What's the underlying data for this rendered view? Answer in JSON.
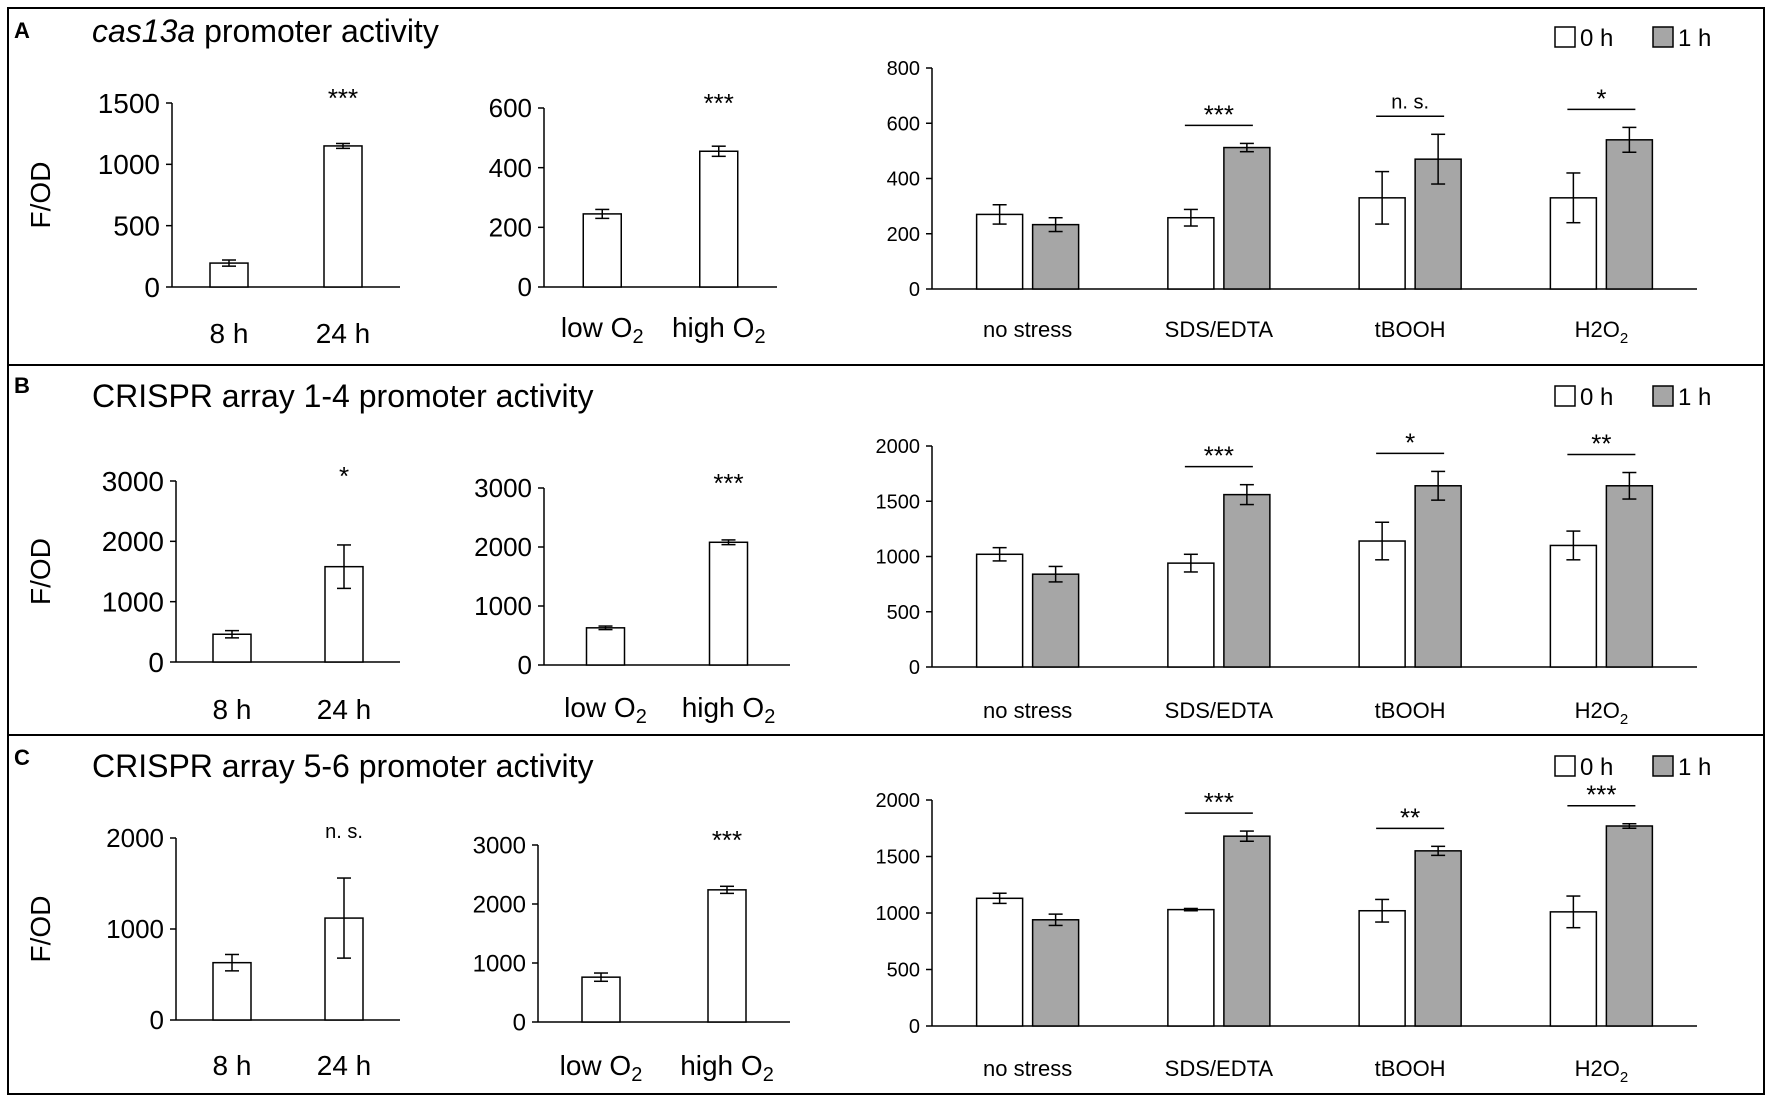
{
  "figure": {
    "panels": [
      {
        "letter": "A",
        "title_italic": "cas13a",
        "title": "promoter activity",
        "legend": [
          "0 h",
          "1 h"
        ]
      },
      {
        "letter": "B",
        "title_italic": "",
        "title": "CRISPR array 1-4 promoter activity",
        "legend": [
          "0 h",
          "1 h"
        ]
      },
      {
        "letter": "C",
        "title_italic": "",
        "title": "CRISPR array 5-6 promoter activity",
        "legend": [
          "0 h",
          "1 h"
        ]
      }
    ],
    "colors": {
      "open_bar": "#ffffff",
      "filled_bar": "#a6a6a6",
      "stroke": "#000000"
    },
    "chart_data": [
      {
        "panel": "A",
        "type": "bar",
        "ylabel": "F/OD",
        "categories": [
          "8 h",
          "24 h"
        ],
        "values": [
          195,
          1150
        ],
        "errors": [
          25,
          20
        ],
        "ylim": [
          0,
          1500
        ],
        "yticks": [
          0,
          500,
          1000,
          1500
        ],
        "annotations": [
          {
            "category": 1,
            "text": "***"
          }
        ]
      },
      {
        "panel": "A",
        "type": "bar",
        "ylabel": "",
        "categories": [
          "low O2",
          "high O2"
        ],
        "values": [
          245,
          455
        ],
        "errors": [
          15,
          17
        ],
        "ylim": [
          0,
          600
        ],
        "yticks": [
          0,
          200,
          400,
          600
        ],
        "annotations": [
          {
            "category": 1,
            "text": "***"
          }
        ]
      },
      {
        "panel": "A",
        "type": "bar",
        "ylabel": "",
        "categories": [
          "no stress",
          "SDS/EDTA",
          "tBOOH",
          "H2O2"
        ],
        "series": [
          {
            "name": "0 h",
            "values": [
              270,
              258,
              330,
              330
            ],
            "errors": [
              35,
              30,
              95,
              90
            ]
          },
          {
            "name": "1 h",
            "values": [
              233,
              512,
              470,
              540
            ],
            "errors": [
              25,
              15,
              90,
              45
            ]
          }
        ],
        "ylim": [
          0,
          800
        ],
        "yticks": [
          0,
          200,
          400,
          600,
          800
        ],
        "annotations": [
          {
            "category": 1,
            "text": "***"
          },
          {
            "category": 2,
            "text": "n. s."
          },
          {
            "category": 3,
            "text": "*"
          }
        ]
      },
      {
        "panel": "B",
        "type": "bar",
        "ylabel": "F/OD",
        "categories": [
          "8 h",
          "24 h"
        ],
        "values": [
          460,
          1580
        ],
        "errors": [
          60,
          360
        ],
        "ylim": [
          0,
          3000
        ],
        "yticks": [
          0,
          1000,
          2000,
          3000
        ],
        "annotations": [
          {
            "category": 1,
            "text": "*"
          }
        ]
      },
      {
        "panel": "B",
        "type": "bar",
        "ylabel": "",
        "categories": [
          "low O2",
          "high O2"
        ],
        "values": [
          630,
          2080
        ],
        "errors": [
          30,
          40
        ],
        "ylim": [
          0,
          3000
        ],
        "yticks": [
          0,
          1000,
          2000,
          3000
        ],
        "annotations": [
          {
            "category": 1,
            "text": "***"
          }
        ]
      },
      {
        "panel": "B",
        "type": "bar",
        "ylabel": "",
        "categories": [
          "no stress",
          "SDS/EDTA",
          "tBOOH",
          "H2O2"
        ],
        "series": [
          {
            "name": "0 h",
            "values": [
              1020,
              940,
              1140,
              1100
            ],
            "errors": [
              60,
              80,
              170,
              130
            ]
          },
          {
            "name": "1 h",
            "values": [
              840,
              1560,
              1640,
              1640
            ],
            "errors": [
              70,
              90,
              130,
              120
            ]
          }
        ],
        "ylim": [
          0,
          2000
        ],
        "yticks": [
          0,
          500,
          1000,
          1500,
          2000
        ],
        "annotations": [
          {
            "category": 1,
            "text": "***"
          },
          {
            "category": 2,
            "text": "*"
          },
          {
            "category": 3,
            "text": "**"
          }
        ]
      },
      {
        "panel": "C",
        "type": "bar",
        "ylabel": "F/OD",
        "categories": [
          "8 h",
          "24 h"
        ],
        "values": [
          630,
          1120
        ],
        "errors": [
          90,
          440
        ],
        "ylim": [
          0,
          2000
        ],
        "yticks": [
          0,
          1000,
          2000
        ],
        "annotations": [
          {
            "category": 1,
            "text": "n. s."
          }
        ]
      },
      {
        "panel": "C",
        "type": "bar",
        "ylabel": "",
        "categories": [
          "low O2",
          "high O2"
        ],
        "values": [
          760,
          2240
        ],
        "errors": [
          70,
          60
        ],
        "ylim": [
          0,
          3000
        ],
        "yticks": [
          0,
          1000,
          2000,
          3000
        ],
        "annotations": [
          {
            "category": 1,
            "text": "***"
          }
        ]
      },
      {
        "panel": "C",
        "type": "bar",
        "ylabel": "",
        "categories": [
          "no stress",
          "SDS/EDTA",
          "tBOOH",
          "H2O2"
        ],
        "series": [
          {
            "name": "0 h",
            "values": [
              1130,
              1030,
              1020,
              1010
            ],
            "errors": [
              45,
              10,
              100,
              140
            ]
          },
          {
            "name": "1 h",
            "values": [
              940,
              1680,
              1550,
              1770
            ],
            "errors": [
              50,
              45,
              40,
              20
            ]
          }
        ],
        "ylim": [
          0,
          2000
        ],
        "yticks": [
          0,
          500,
          1000,
          1500,
          2000
        ],
        "annotations": [
          {
            "category": 1,
            "text": "***"
          },
          {
            "category": 2,
            "text": "**"
          },
          {
            "category": 3,
            "text": "***"
          }
        ]
      }
    ]
  }
}
